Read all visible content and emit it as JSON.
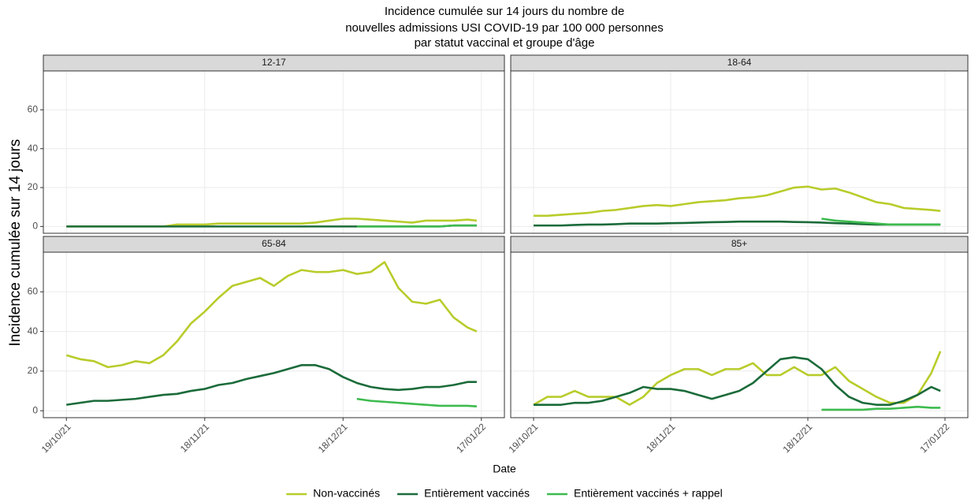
{
  "chart_data": {
    "type": "line",
    "title": [
      "Incidence cumulée sur 14 jours du nombre de",
      "nouvelles admissions USI COVID-19 par 100 000 personnes",
      "par statut vaccinal et groupe d'âge"
    ],
    "xlabel": "Date",
    "ylabel": "Incidence cumulée sur 14 jours",
    "legend": "bottom",
    "grid": true,
    "series": [
      {
        "name": "Non-vaccinés",
        "color": "#b8cc2a"
      },
      {
        "name": "Entièrement vaccinés",
        "color": "#1b6b3a"
      },
      {
        "name": "Entièrement vaccinés + rappel",
        "color": "#3dbb4e"
      }
    ],
    "x": [
      "2021-10-19",
      "2021-10-22",
      "2021-10-25",
      "2021-10-28",
      "2021-10-31",
      "2021-11-03",
      "2021-11-06",
      "2021-11-09",
      "2021-11-12",
      "2021-11-15",
      "2021-11-18",
      "2021-11-21",
      "2021-11-24",
      "2021-11-27",
      "2021-11-30",
      "2021-12-03",
      "2021-12-06",
      "2021-12-09",
      "2021-12-12",
      "2021-12-15",
      "2021-12-18",
      "2021-12-21",
      "2021-12-24",
      "2021-12-27",
      "2021-12-30",
      "2022-01-02",
      "2022-01-05",
      "2022-01-08",
      "2022-01-11",
      "2022-01-14",
      "2022-01-16"
    ],
    "xlim": [
      "2021-10-14",
      "2022-01-22"
    ],
    "xticks": [
      {
        "value": "2021-10-19",
        "label": "19/10/21"
      },
      {
        "value": "2021-11-18",
        "label": "18/11/21"
      },
      {
        "value": "2021-12-18",
        "label": "18/12/21"
      },
      {
        "value": "2022-01-17",
        "label": "17/01/22"
      }
    ],
    "ylim": [
      -3.5,
      80
    ],
    "yticks": [
      0,
      20,
      40,
      60
    ],
    "panels": [
      {
        "title": "12-17",
        "values": [
          [
            0,
            0,
            0,
            0,
            0,
            0,
            0,
            0,
            1,
            1,
            1,
            1.5,
            1.5,
            1.5,
            1.5,
            1.5,
            1.5,
            1.5,
            2,
            3,
            4,
            4,
            3.5,
            3,
            2.5,
            2,
            3,
            3,
            3,
            3.5,
            3
          ],
          [
            0,
            0,
            0,
            0,
            0,
            0,
            0,
            0,
            0,
            0,
            0,
            0,
            0,
            0,
            0,
            0,
            0,
            0,
            0,
            0,
            0,
            0,
            0,
            0,
            0,
            0,
            0,
            0,
            0.5,
            0.5,
            0.5
          ],
          [
            null,
            null,
            null,
            null,
            null,
            null,
            null,
            null,
            null,
            null,
            null,
            null,
            null,
            null,
            null,
            null,
            null,
            null,
            null,
            null,
            null,
            0,
            0,
            0,
            0,
            0,
            0,
            0,
            0.5,
            0.5,
            0.5
          ]
        ]
      },
      {
        "title": "18-64",
        "values": [
          [
            5.5,
            5.5,
            6,
            6.5,
            7,
            8,
            8.5,
            9.5,
            10.5,
            11,
            10.5,
            11.5,
            12.5,
            13,
            13.5,
            14.5,
            15,
            16,
            18,
            20,
            20.5,
            19,
            19.5,
            17.5,
            15,
            12.5,
            11.5,
            9.5,
            9,
            8.5,
            8
          ],
          [
            0.5,
            0.5,
            0.5,
            0.8,
            1,
            1,
            1.2,
            1.5,
            1.5,
            1.5,
            1.7,
            1.8,
            2,
            2.2,
            2.3,
            2.5,
            2.5,
            2.5,
            2.5,
            2.3,
            2.2,
            2,
            1.7,
            1.5,
            1.2,
            1,
            1,
            1,
            1,
            1,
            1
          ],
          [
            null,
            null,
            null,
            null,
            null,
            null,
            null,
            null,
            null,
            null,
            null,
            null,
            null,
            null,
            null,
            null,
            null,
            null,
            null,
            null,
            null,
            4,
            3,
            2.5,
            2,
            1.5,
            1,
            1,
            1,
            1,
            1
          ]
        ]
      },
      {
        "title": "65-84",
        "values": [
          [
            28,
            26,
            25,
            22,
            23,
            25,
            24,
            28,
            35,
            44,
            50,
            57,
            63,
            65,
            67,
            63,
            68,
            71,
            70,
            70,
            71,
            69,
            70,
            75,
            62,
            55,
            54,
            56,
            47,
            42,
            40
          ],
          [
            3,
            4,
            5,
            5,
            5.5,
            6,
            7,
            8,
            8.5,
            10,
            11,
            13,
            14,
            16,
            17.5,
            19,
            21,
            23,
            23,
            21,
            17,
            14,
            12,
            11,
            10.5,
            11,
            12,
            12,
            13,
            14.5,
            14.5
          ],
          [
            null,
            null,
            null,
            null,
            null,
            null,
            null,
            null,
            null,
            null,
            null,
            null,
            null,
            null,
            null,
            null,
            null,
            null,
            null,
            null,
            null,
            6,
            5,
            4.5,
            4,
            3.5,
            3,
            2.5,
            2.5,
            2.5,
            2.2
          ]
        ]
      },
      {
        "title": "85+",
        "values": [
          [
            3,
            7,
            7,
            10,
            7,
            7,
            7,
            3,
            7,
            14,
            18,
            21,
            21,
            18,
            21,
            21,
            24,
            18,
            18,
            22,
            18,
            18,
            22,
            15,
            11,
            7,
            4,
            4,
            8,
            19,
            30
          ],
          [
            3,
            3,
            3,
            4,
            4,
            5,
            7,
            9,
            12,
            11,
            11,
            10,
            8,
            6,
            8,
            10,
            14,
            20,
            26,
            27,
            26,
            21,
            13,
            7,
            4,
            3,
            3,
            5,
            8,
            12,
            10
          ],
          [
            null,
            null,
            null,
            null,
            null,
            null,
            null,
            null,
            null,
            null,
            null,
            null,
            null,
            null,
            null,
            null,
            null,
            null,
            null,
            null,
            null,
            0.5,
            0.5,
            0.5,
            0.5,
            1,
            1,
            1.5,
            2,
            1.5,
            1.5
          ]
        ]
      }
    ]
  }
}
